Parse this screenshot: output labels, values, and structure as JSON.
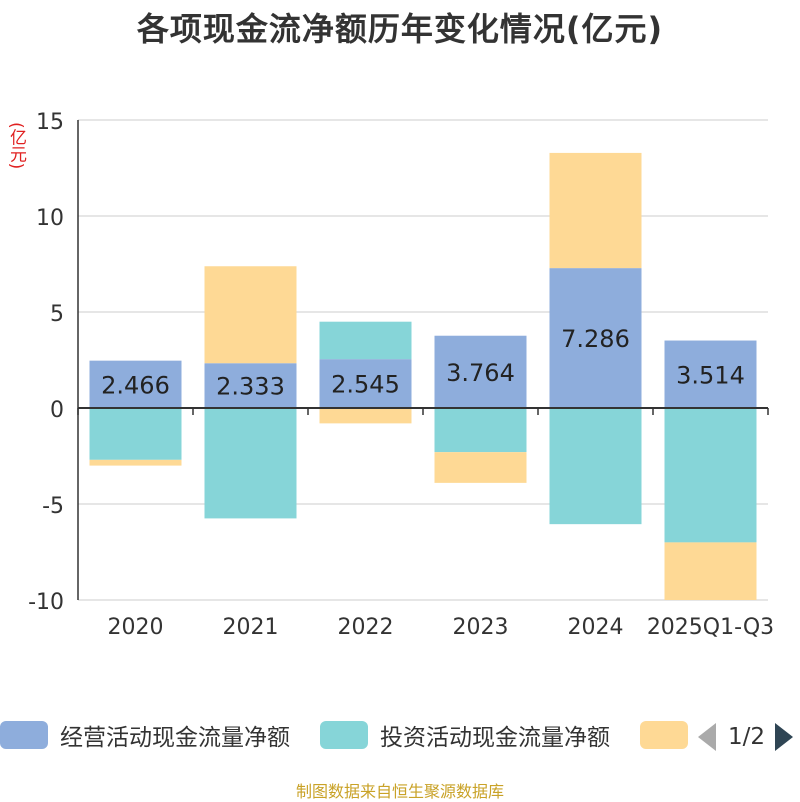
{
  "chart_data": {
    "type": "bar",
    "stacked": true,
    "title": "各项现金流净额历年变化情况(亿元)",
    "ylabel": "(亿元)",
    "ylim": [
      -10,
      15
    ],
    "yticks": [
      15,
      10,
      5,
      0,
      -5,
      -10
    ],
    "categories": [
      "2020",
      "2021",
      "2022",
      "2023",
      "2024",
      "2025Q1-Q3"
    ],
    "series": [
      {
        "name": "经营活动现金流量净额",
        "color": "#8eaddc",
        "values": [
          2.466,
          2.333,
          2.545,
          3.764,
          7.286,
          3.514
        ],
        "labels": [
          "2.466",
          "2.333",
          "2.545",
          "3.764",
          "7.286",
          "3.514"
        ]
      },
      {
        "name": "投资活动现金流量净额",
        "color": "#86d5d8",
        "values": [
          -2.7,
          -5.75,
          1.95,
          -2.3,
          -6.05,
          -7.0
        ]
      },
      {
        "name": "",
        "color": "#fed995",
        "values": [
          -0.3,
          5.05,
          -0.8,
          -1.6,
          6.0,
          -3.0
        ]
      }
    ]
  },
  "legend": {
    "items": [
      "经营活动现金流量净额",
      "投资活动现金流量净额",
      ""
    ],
    "page": "1/2"
  },
  "source": "制图数据来自恒生聚源数据库"
}
